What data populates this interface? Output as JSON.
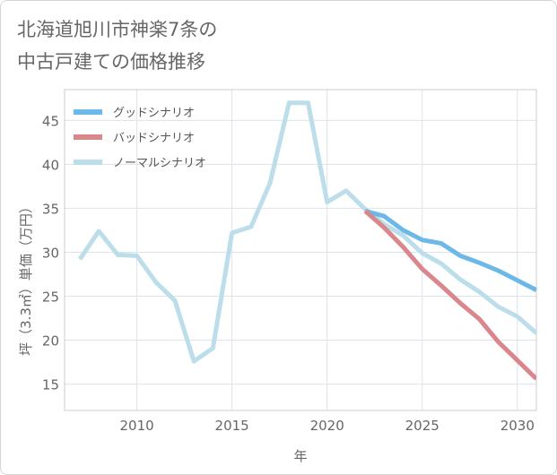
{
  "title_lines": [
    "北海道旭川市神楽7条の",
    "中古戸建ての価格推移"
  ],
  "chart_data": {
    "type": "line",
    "xlabel": "年",
    "ylabel": "坪（3.3㎡）単価（万円）",
    "xlim": [
      2006.2,
      2031
    ],
    "ylim": [
      12,
      48.5
    ],
    "xticks": [
      2010,
      2015,
      2020,
      2025,
      2030
    ],
    "yticks": [
      15,
      20,
      25,
      30,
      35,
      40,
      45
    ],
    "grid": true,
    "legend_position": "top-left",
    "series": [
      {
        "name": "グッドシナリオ",
        "color": "#6cb8e9",
        "x": [
          2022,
          2023,
          2024,
          2025,
          2026,
          2027,
          2028,
          2029,
          2030,
          2031
        ],
        "y": [
          34.7,
          34.1,
          32.5,
          31.4,
          31.0,
          29.6,
          28.8,
          27.9,
          26.8,
          25.7
        ]
      },
      {
        "name": "バッドシナリオ",
        "color": "#d9868c",
        "x": [
          2022,
          2023,
          2024,
          2025,
          2026,
          2027,
          2028,
          2029,
          2030,
          2031
        ],
        "y": [
          34.7,
          32.8,
          30.6,
          28.1,
          26.2,
          24.2,
          22.4,
          19.8,
          17.7,
          15.6
        ]
      },
      {
        "name": "ノーマルシナリオ",
        "color": "#bcdeea",
        "x": [
          2007,
          2008,
          2009,
          2010,
          2011,
          2012,
          2013,
          2014,
          2015,
          2016,
          2017,
          2018,
          2019,
          2020,
          2021,
          2022,
          2023,
          2024,
          2025,
          2026,
          2027,
          2028,
          2029,
          2030,
          2031
        ],
        "y": [
          29.2,
          32.4,
          29.7,
          29.6,
          26.6,
          24.5,
          17.6,
          19.1,
          32.2,
          32.9,
          37.9,
          47.0,
          47.0,
          35.7,
          37.0,
          34.9,
          33.2,
          31.9,
          29.9,
          28.7,
          26.9,
          25.5,
          23.8,
          22.7,
          20.8
        ]
      }
    ]
  }
}
